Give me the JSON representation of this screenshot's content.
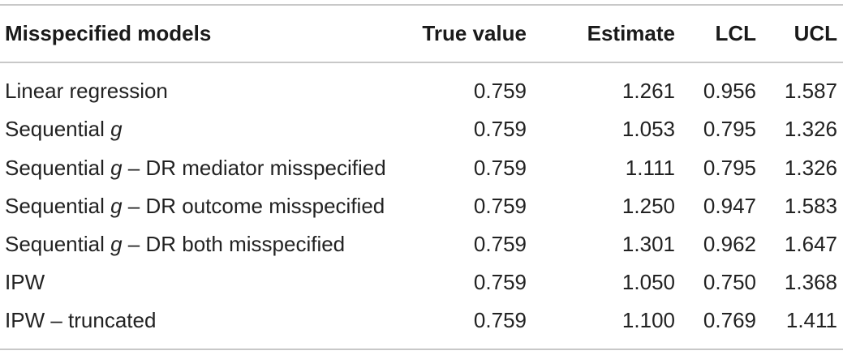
{
  "table": {
    "headers": {
      "model": "Misspecified models",
      "true_value": "True value",
      "estimate": "Estimate",
      "lcl": "LCL",
      "ucl": "UCL"
    },
    "rows": [
      {
        "prefix": "Linear regression",
        "g": "",
        "suffix": "",
        "true_value": "0.759",
        "estimate": "1.261",
        "lcl": "0.956",
        "ucl": "1.587"
      },
      {
        "prefix": "Sequential ",
        "g": "g",
        "suffix": "",
        "true_value": "0.759",
        "estimate": "1.053",
        "lcl": "0.795",
        "ucl": "1.326"
      },
      {
        "prefix": "Sequential ",
        "g": "g",
        "suffix": " – DR mediator misspecified",
        "true_value": "0.759",
        "estimate": "1.111",
        "lcl": "0.795",
        "ucl": "1.326"
      },
      {
        "prefix": "Sequential ",
        "g": "g",
        "suffix": " – DR outcome misspecified",
        "true_value": "0.759",
        "estimate": "1.250",
        "lcl": "0.947",
        "ucl": "1.583"
      },
      {
        "prefix": "Sequential ",
        "g": "g",
        "suffix": " – DR both misspecified",
        "true_value": "0.759",
        "estimate": "1.301",
        "lcl": "0.962",
        "ucl": "1.647"
      },
      {
        "prefix": "IPW",
        "g": "",
        "suffix": "",
        "true_value": "0.759",
        "estimate": "1.050",
        "lcl": "0.750",
        "ucl": "1.368"
      },
      {
        "prefix": "IPW – truncated",
        "g": "",
        "suffix": "",
        "true_value": "0.759",
        "estimate": "1.100",
        "lcl": "0.769",
        "ucl": "1.411"
      }
    ]
  }
}
